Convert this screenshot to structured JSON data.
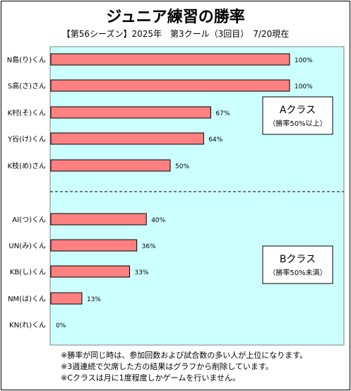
{
  "chart_data": {
    "type": "bar",
    "orientation": "horizontal",
    "title": "ジュニア練習の勝率",
    "subtitle": "【第56シーズン】2025年　第3クール（3回目）　7/20現在",
    "xlim": [
      0,
      100
    ],
    "value_suffix": "%",
    "bar_color": "#ff8080",
    "plot_background": "#ccffff",
    "groups": [
      {
        "name": "Aクラス",
        "note": "（勝率50%以上）",
        "categories": [
          "N島(り)くん",
          "S高(さ)さん",
          "K村(そ)くん",
          "Y谷(け)くん",
          "K枝(め)さん"
        ],
        "values": [
          100,
          100,
          67,
          64,
          50
        ]
      },
      {
        "name": "Bクラス",
        "note": "（勝率50%未満）",
        "categories": [
          "AI(つ)くん",
          "UN(み)くん",
          "KB(し)くん",
          "NM(は)くん",
          "KN(れ)くん"
        ],
        "values": [
          40,
          36,
          33,
          13,
          0
        ]
      }
    ]
  },
  "notes": [
    "※勝率が同じ時は、参加回数および試合数の多い人が上位になります。",
    "※3週連続で欠席した方の結果はグラフから削除しています。",
    "※Cクラスは月に1度程度しかゲームを行いません。"
  ]
}
